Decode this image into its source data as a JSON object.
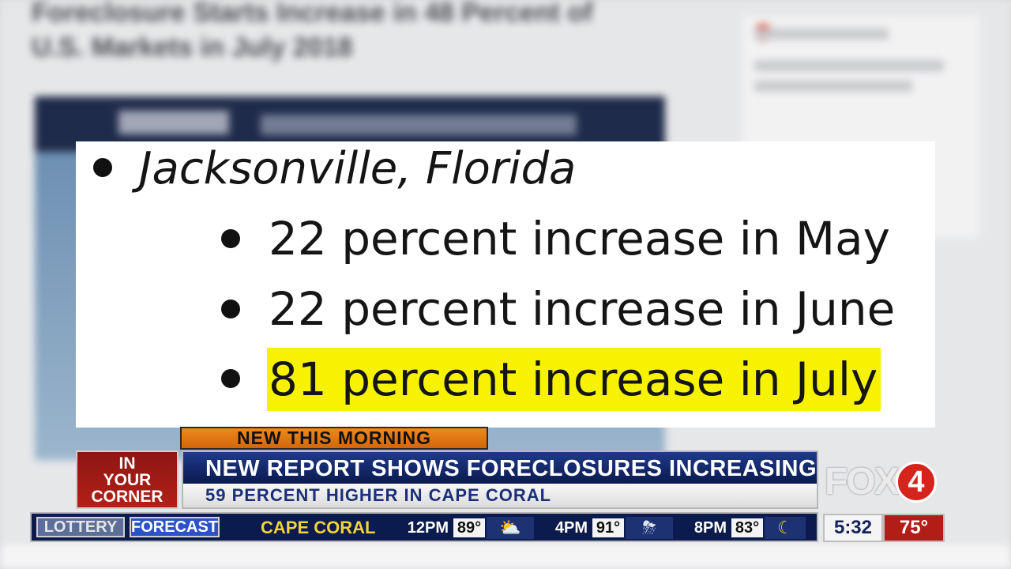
{
  "background_page": {
    "title": "Foreclosure Starts Increase in 48 Percent of U.S. Markets in July 2018"
  },
  "card": {
    "city": "Jacksonville, Florida",
    "stats": [
      {
        "text": "22 percent increase in May",
        "highlight": false
      },
      {
        "text": "22 percent increase in June",
        "highlight": false
      },
      {
        "text": "81 percent increase in July",
        "highlight": true
      }
    ],
    "highlight_color": "#f7f300"
  },
  "lower_third": {
    "tag": "NEW THIS MORNING",
    "corner": [
      "IN",
      "YOUR",
      "CORNER"
    ],
    "headline": "NEW REPORT SHOWS FORECLOSURES INCREASING",
    "subline": "59 PERCENT HIGHER IN CAPE CORAL"
  },
  "logo": {
    "text": "FOX",
    "number": "4"
  },
  "ticker": {
    "lottery_label": "LOTTERY",
    "forecast_label": "FORECAST",
    "city": "CAPE CORAL",
    "forecast": [
      {
        "time": "12PM",
        "temp": "89°",
        "icon": "partly-sunny-icon",
        "glyph": "⛅"
      },
      {
        "time": "4PM",
        "temp": "91°",
        "icon": "thunderstorm-icon",
        "glyph": "⛈"
      },
      {
        "time": "8PM",
        "temp": "83°",
        "icon": "night-cloudy-icon",
        "glyph": "☾"
      }
    ]
  },
  "clock": "5:32",
  "current_temp": "75°",
  "colors": {
    "navy": "#0c1b4d",
    "orange": "#ee8a1c",
    "red": "#b21e17",
    "gold": "#f2d23a"
  }
}
